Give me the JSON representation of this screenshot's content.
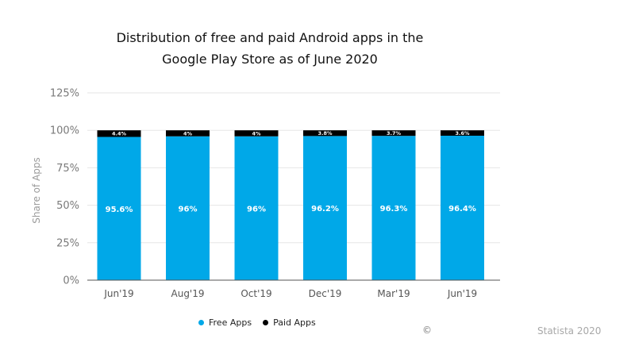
{
  "title_lines": [
    "Distribution of free and paid Android apps in the",
    "Google Play Store as of June 2020"
  ],
  "chart_data": {
    "type": "bar",
    "stacked": true,
    "categories": [
      "Jun'19",
      "Aug'19",
      "Oct'19",
      "Dec'19",
      "Mar'19",
      "Jun'19"
    ],
    "series": [
      {
        "name": "Free Apps",
        "values": [
          95.6,
          96,
          96,
          96.2,
          96.3,
          96.4
        ],
        "labels": [
          "95.6%",
          "96%",
          "96%",
          "96.2%",
          "96.3%",
          "96.4%"
        ],
        "color": "#00a8e8"
      },
      {
        "name": "Paid Apps",
        "values": [
          4.4,
          4,
          4,
          3.8,
          3.7,
          3.6
        ],
        "labels": [
          "4.4%",
          "4%",
          "4%",
          "3.8%",
          "3.7%",
          "3.6%"
        ],
        "color": "#000000"
      }
    ],
    "ylabel": "Share of Apps",
    "ylim": [
      0,
      125
    ],
    "yticks": [
      0,
      25,
      50,
      75,
      100,
      125
    ],
    "ytick_labels": [
      "0%",
      "25%",
      "50%",
      "75%",
      "100%",
      "125%"
    ],
    "grid": true,
    "legend_position": "bottom"
  },
  "legend": {
    "free_label": "Free Apps",
    "paid_label": "Paid Apps",
    "free_color": "#00a8e8",
    "paid_color": "#000000"
  },
  "copyright_symbol": "©",
  "source": "Statista 2020"
}
